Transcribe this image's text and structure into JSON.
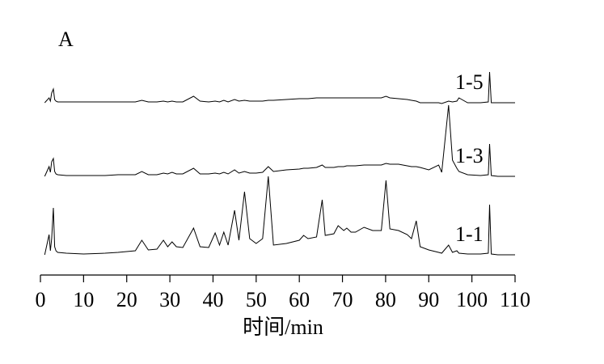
{
  "chart_data": {
    "type": "line",
    "panel_label": "A",
    "xlabel": "时间/min",
    "x": [
      1,
      2,
      2.3,
      2.6,
      3,
      3.3,
      3.6,
      4,
      6,
      10,
      15,
      18,
      20,
      22,
      23.5,
      25,
      27,
      28.5,
      29.5,
      30.5,
      31.5,
      33,
      35.5,
      37,
      39,
      40.5,
      41.5,
      42.5,
      43.5,
      45,
      46,
      47.3,
      48.5,
      50,
      51.5,
      52.8,
      54,
      57,
      60,
      61,
      62,
      64,
      65.3,
      66,
      68,
      69,
      70.3,
      71,
      72,
      73,
      75,
      77,
      79,
      80.1,
      81,
      83,
      85,
      86,
      87.1,
      88,
      90,
      92.3,
      93,
      94.6,
      95.5,
      96.5,
      97,
      99,
      102,
      103.8,
      104.1,
      104.5,
      106,
      110
    ],
    "series": [
      {
        "name": "1-5",
        "color": "#000000",
        "values": [
          0,
          6,
          2,
          12,
          17,
          4,
          2,
          1,
          1,
          1,
          1,
          1,
          1,
          1,
          3,
          1,
          1,
          2,
          1,
          2,
          1,
          1,
          8,
          2,
          1,
          2,
          1,
          3,
          1,
          4,
          2,
          3,
          2,
          2,
          2,
          3,
          3,
          4,
          5,
          5,
          5,
          6,
          6,
          6,
          6,
          6,
          6,
          6,
          6,
          6,
          6,
          6,
          6,
          8,
          6,
          5,
          4,
          3,
          2,
          0,
          0,
          0,
          -1,
          2,
          1,
          2,
          6,
          0,
          0,
          1,
          38,
          0,
          0,
          0
        ]
      },
      {
        "name": "1-3",
        "color": "#000000",
        "values": [
          0,
          12,
          5,
          18,
          22,
          6,
          3,
          2,
          1,
          1,
          1,
          2,
          2,
          2,
          6,
          2,
          2,
          4,
          3,
          5,
          3,
          3,
          10,
          3,
          3,
          4,
          3,
          5,
          3,
          8,
          4,
          6,
          4,
          4,
          5,
          12,
          6,
          8,
          9,
          10,
          10,
          11,
          14,
          11,
          11,
          12,
          12,
          13,
          13,
          13,
          14,
          14,
          14,
          16,
          15,
          15,
          13,
          12,
          12,
          11,
          8,
          14,
          5,
          88,
          20,
          10,
          6,
          2,
          1,
          2,
          40,
          1,
          0,
          0
        ]
      },
      {
        "name": "1-1",
        "color": "#000000",
        "values": [
          0,
          25,
          5,
          20,
          58,
          10,
          5,
          3,
          2,
          1,
          2,
          3,
          4,
          5,
          18,
          6,
          7,
          18,
          10,
          16,
          10,
          9,
          33,
          10,
          9,
          27,
          12,
          28,
          12,
          55,
          18,
          78,
          20,
          14,
          20,
          97,
          12,
          14,
          18,
          24,
          20,
          22,
          68,
          24,
          26,
          36,
          30,
          33,
          28,
          28,
          34,
          30,
          30,
          92,
          32,
          30,
          25,
          20,
          42,
          10,
          6,
          3,
          2,
          12,
          3,
          5,
          2,
          1,
          1,
          2,
          62,
          1,
          0,
          0
        ]
      }
    ],
    "xlim": [
      0,
      110
    ],
    "xticks": [
      0,
      10,
      20,
      30,
      40,
      50,
      60,
      70,
      80,
      90,
      100,
      110
    ]
  }
}
